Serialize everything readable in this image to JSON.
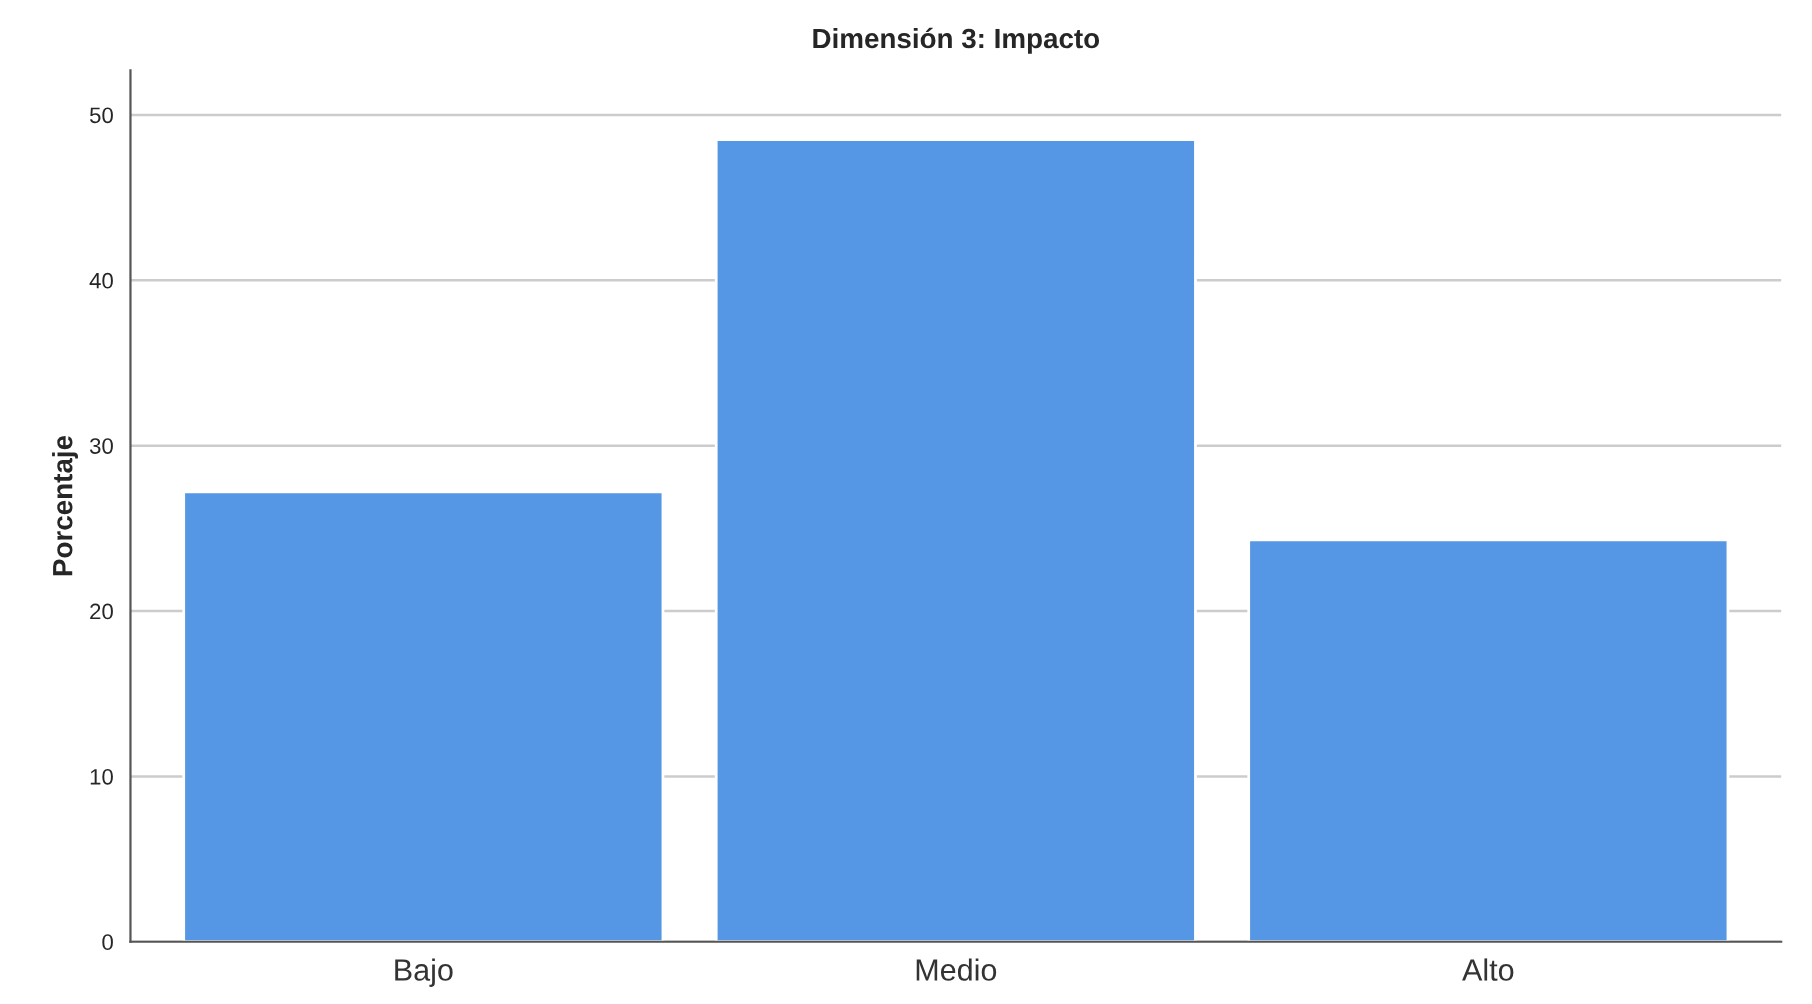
{
  "chart_data": {
    "type": "bar",
    "title": "Dimensión 3: Impacto",
    "ylabel": "Porcentaje",
    "categories": [
      "Bajo",
      "Medio",
      "Alto"
    ],
    "values": [
      27.2,
      48.5,
      24.3
    ],
    "color": "#5596e5",
    "ylim": [
      0,
      52.7
    ],
    "yticks": [
      0,
      10,
      20,
      30,
      40,
      50
    ],
    "grid": "y",
    "legend": false
  }
}
